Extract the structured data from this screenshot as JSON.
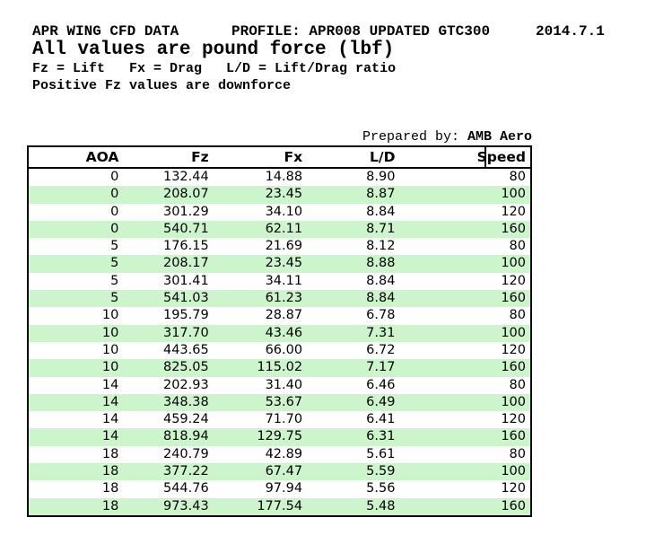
{
  "header": {
    "title_left": "APR WING CFD DATA",
    "title_middle": "PROFILE: APR008 UPDATED GTC300",
    "title_right": "2014.7.1",
    "subtitle": "All values are pound force (lbf)",
    "legend": "Fz = Lift   Fx = Drag   L/D = Lift/Drag ratio",
    "note": "Positive Fz values are downforce",
    "prepared_by_label": "Prepared by: ",
    "prepared_by_value": "AMB Aero"
  },
  "table": {
    "columns": [
      "AOA",
      "Fz",
      "Fx",
      "L/D",
      "Speed"
    ],
    "rows": [
      [
        "0",
        "132.44",
        "14.88",
        "8.90",
        "80"
      ],
      [
        "0",
        "208.07",
        "23.45",
        "8.87",
        "100"
      ],
      [
        "0",
        "301.29",
        "34.10",
        "8.84",
        "120"
      ],
      [
        "0",
        "540.71",
        "62.11",
        "8.71",
        "160"
      ],
      [
        "5",
        "176.15",
        "21.69",
        "8.12",
        "80"
      ],
      [
        "5",
        "208.17",
        "23.45",
        "8.88",
        "100"
      ],
      [
        "5",
        "301.41",
        "34.11",
        "8.84",
        "120"
      ],
      [
        "5",
        "541.03",
        "61.23",
        "8.84",
        "160"
      ],
      [
        "10",
        "195.79",
        "28.87",
        "6.78",
        "80"
      ],
      [
        "10",
        "317.70",
        "43.46",
        "7.31",
        "100"
      ],
      [
        "10",
        "443.65",
        "66.00",
        "6.72",
        "120"
      ],
      [
        "10",
        "825.05",
        "115.02",
        "7.17",
        "160"
      ],
      [
        "14",
        "202.93",
        "31.40",
        "6.46",
        "80"
      ],
      [
        "14",
        "348.38",
        "53.67",
        "6.49",
        "100"
      ],
      [
        "14",
        "459.24",
        "71.70",
        "6.41",
        "120"
      ],
      [
        "14",
        "818.94",
        "129.75",
        "6.31",
        "160"
      ],
      [
        "18",
        "240.79",
        "42.89",
        "5.61",
        "80"
      ],
      [
        "18",
        "377.22",
        "67.47",
        "5.59",
        "100"
      ],
      [
        "18",
        "544.76",
        "97.94",
        "5.56",
        "120"
      ],
      [
        "18",
        "973.43",
        "177.54",
        "5.48",
        "160"
      ]
    ],
    "colors": {
      "row_alt": "#ccf5cc",
      "border": "#000000",
      "text": "#000000"
    }
  }
}
